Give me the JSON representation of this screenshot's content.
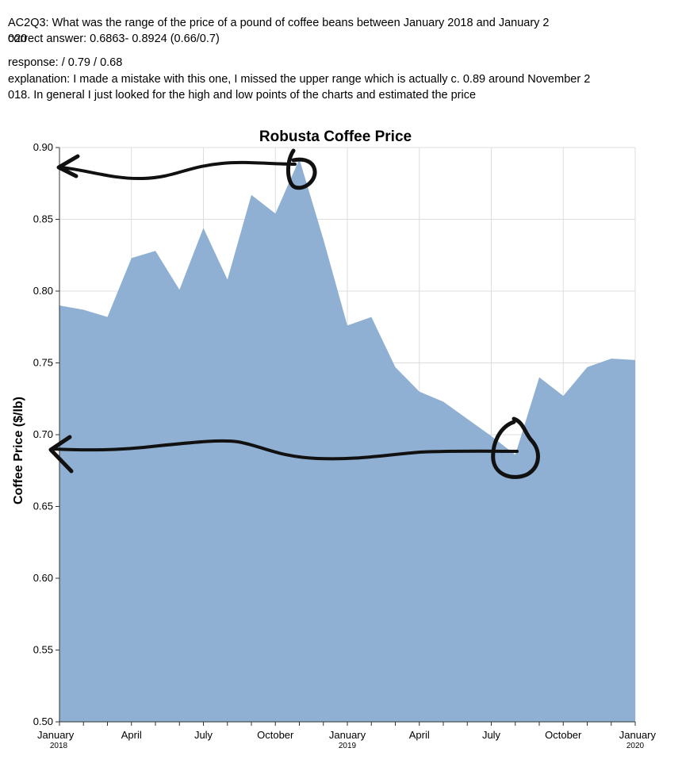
{
  "annotations": {
    "question_line1": "AC2Q3: What was the range of the price of a pound of coffee beans between January 2018 and January 2",
    "question_overflow": "020",
    "correct_answer": "correct answer: 0.6863- 0.8924 (0.66/0.7)",
    "response": "response:  / 0.79 / 0.68",
    "explanation_line1": "explanation: I made a mistake with this one, I missed the upper range which is actually c. 0.89 around November 2",
    "explanation_line2": "018. In general I just looked for the high and low points of the charts and estimated the price"
  },
  "colors": {
    "area_fill": "#8fb0d2",
    "grid": "#dddddd",
    "axis": "#333333",
    "ink": "#111111"
  },
  "chart_data": {
    "type": "area",
    "title": "Robusta Coffee Price",
    "ylabel": "Coffee Price ($/lb)",
    "xlabel": "",
    "ylim": [
      0.5,
      0.9
    ],
    "grid": true,
    "x": [
      "2018-01",
      "2018-02",
      "2018-03",
      "2018-04",
      "2018-05",
      "2018-06",
      "2018-07",
      "2018-08",
      "2018-09",
      "2018-10",
      "2018-11",
      "2018-12",
      "2019-01",
      "2019-02",
      "2019-03",
      "2019-04",
      "2019-05",
      "2019-06",
      "2019-07",
      "2019-08",
      "2019-09",
      "2019-10",
      "2019-11",
      "2019-12",
      "2020-01"
    ],
    "values": [
      0.79,
      0.787,
      0.782,
      0.823,
      0.828,
      0.801,
      0.844,
      0.808,
      0.867,
      0.854,
      0.892,
      0.836,
      0.776,
      0.782,
      0.747,
      0.73,
      0.723,
      0.711,
      0.699,
      0.686,
      0.74,
      0.727,
      0.747,
      0.753,
      0.752
    ],
    "y_ticks": [
      "0.50",
      "0.55",
      "0.60",
      "0.65",
      "0.70",
      "0.75",
      "0.80",
      "0.85",
      "0.90"
    ],
    "x_ticks": [
      {
        "label": "January",
        "year": "2018",
        "index": 0
      },
      {
        "label": "April",
        "year": "",
        "index": 3
      },
      {
        "label": "July",
        "year": "",
        "index": 6
      },
      {
        "label": "October",
        "year": "",
        "index": 9
      },
      {
        "label": "January",
        "year": "2019",
        "index": 12
      },
      {
        "label": "April",
        "year": "",
        "index": 15
      },
      {
        "label": "July",
        "year": "",
        "index": 18
      },
      {
        "label": "October",
        "year": "",
        "index": 21
      },
      {
        "label": "January",
        "year": "2020",
        "index": 24
      }
    ]
  }
}
